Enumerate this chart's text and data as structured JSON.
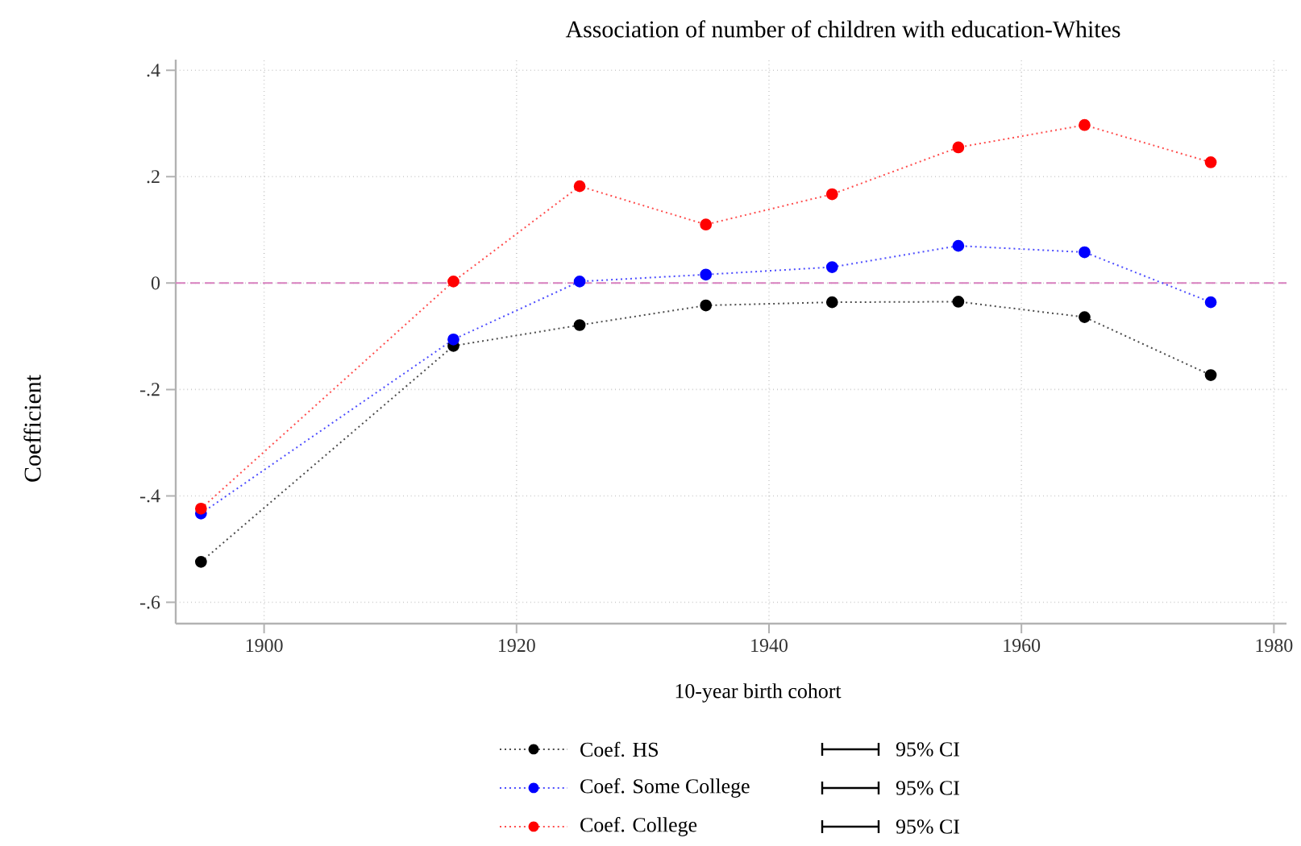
{
  "chart_data": {
    "type": "line",
    "title": "Association of number of children with education-Whites",
    "xlabel": "10-year birth cohort",
    "ylabel": "Coefficient",
    "x": [
      1895,
      1915,
      1925,
      1935,
      1945,
      1955,
      1965,
      1975
    ],
    "series": [
      {
        "name": "Coef. HS",
        "color": "#000000",
        "values": [
          -0.524,
          -0.118,
          -0.079,
          -0.042,
          -0.036,
          -0.035,
          -0.064,
          -0.173
        ]
      },
      {
        "name": "Coef. Some College",
        "color": "#0000ff",
        "values": [
          -0.433,
          -0.106,
          0.003,
          0.016,
          0.03,
          0.07,
          0.058,
          -0.036
        ]
      },
      {
        "name": "Coef. College",
        "color": "#ff0000",
        "values": [
          -0.424,
          0.003,
          0.182,
          0.11,
          0.167,
          0.255,
          0.297,
          0.227
        ]
      }
    ],
    "xlim": [
      1893,
      1981
    ],
    "ylim": [
      -0.64,
      0.42
    ],
    "xticks": [
      1900,
      1920,
      1940,
      1960,
      1980
    ],
    "yticks": [
      {
        "value": -0.6,
        "label": "-.6"
      },
      {
        "value": -0.4,
        "label": "-.4"
      },
      {
        "value": -0.2,
        "label": "-.2"
      },
      {
        "value": 0,
        "label": "0"
      },
      {
        "value": 0.2,
        "label": ".2"
      },
      {
        "value": 0.4,
        "label": ".4"
      }
    ],
    "ref_lines": [
      {
        "axis": "y",
        "value": 0,
        "color": "#d77fbf",
        "line_style": "dashed"
      }
    ],
    "annotations": [
      "95% CI",
      "95% CI",
      "95% CI"
    ],
    "grid": true,
    "legend": "bottom",
    "marker": "circle",
    "line_style": "dotted"
  }
}
